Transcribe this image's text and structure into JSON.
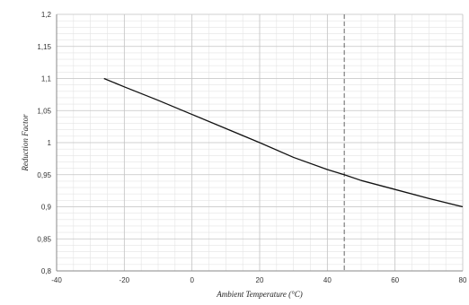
{
  "chart_data": {
    "type": "line",
    "title": "",
    "xlabel": "Ambient Temperature  (°C)",
    "ylabel": "Reduction Factor",
    "xlim": [
      -40,
      80
    ],
    "ylim": [
      0.8,
      1.2
    ],
    "x_ticks": [
      -40,
      -20,
      0,
      20,
      40,
      60,
      80
    ],
    "x_tick_labels": [
      "-40",
      "-20",
      "0",
      "20",
      "40",
      "60",
      "80"
    ],
    "y_ticks": [
      0.8,
      0.85,
      0.9,
      0.95,
      1.0,
      1.05,
      1.1,
      1.15,
      1.2
    ],
    "y_tick_labels": [
      "0,8",
      "0,85",
      "0,9",
      "0,95",
      "1",
      "1,05",
      "1,1",
      "1,15",
      "1,2"
    ],
    "grid": true,
    "series": [
      {
        "x": [
          -26,
          -20,
          -10,
          0,
          10,
          20,
          30,
          40,
          45,
          50,
          60,
          70,
          80
        ],
        "values": [
          1.1,
          1.087,
          1.066,
          1.044,
          1.022,
          1.0,
          0.977,
          0.958,
          0.95,
          0.941,
          0.927,
          0.913,
          0.9
        ],
        "color": "#111111"
      }
    ],
    "reference_line": {
      "x": 45,
      "style": "dashed",
      "color": "#666666"
    }
  }
}
